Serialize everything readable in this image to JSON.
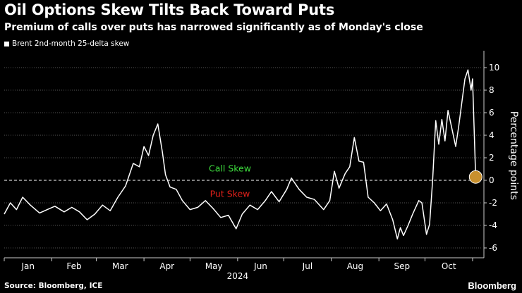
{
  "header": {
    "title": "Oil Options Skew Tilts Back Toward Puts",
    "subtitle": "Premium of calls over puts has narrowed significantly as of Monday's close"
  },
  "footer": {
    "source": "Source: Bloomberg, ICE",
    "brand": "Bloomberg"
  },
  "chart_data": {
    "type": "line",
    "title": "Oil Options Skew Tilts Back Toward Puts",
    "subtitle": "Premium of calls over puts has narrowed significantly as of Monday's close",
    "ylabel": "Percentage points",
    "xlabel": "2024",
    "ylim": [
      -7,
      11.5
    ],
    "yticks": [
      -6,
      -4,
      -2,
      0,
      2,
      4,
      6,
      8,
      10
    ],
    "x_categories": [
      "Jan",
      "Feb",
      "Mar",
      "Apr",
      "May",
      "Jun",
      "Jul",
      "Aug",
      "Sep",
      "Oct"
    ],
    "year_label": "2024",
    "legend_position": "top-left",
    "grid": "horizontal dotted",
    "annotations": [
      {
        "text": "Call Skew",
        "y": 0.6,
        "color": "#3ddc3d"
      },
      {
        "text": "Put Skew",
        "y": -0.9,
        "color": "#e0201a"
      }
    ],
    "reference_line": 0,
    "colors": {
      "series": "#ffffff",
      "marker": "#c8902e",
      "call": "#3ddc3d",
      "put": "#e0201a"
    },
    "series": [
      {
        "name": "Brent 2nd-month 25-delta skew",
        "points": [
          [
            "2024-01-01",
            -3.0
          ],
          [
            "2024-01-05",
            -2.0
          ],
          [
            "2024-01-09",
            -2.6
          ],
          [
            "2024-01-13",
            -1.5
          ],
          [
            "2024-01-18",
            -2.2
          ],
          [
            "2024-01-24",
            -2.9
          ],
          [
            "2024-01-29",
            -2.6
          ],
          [
            "2024-02-03",
            -2.3
          ],
          [
            "2024-02-09",
            -2.8
          ],
          [
            "2024-02-14",
            -2.4
          ],
          [
            "2024-02-19",
            -2.8
          ],
          [
            "2024-02-24",
            -3.5
          ],
          [
            "2024-02-29",
            -3.0
          ],
          [
            "2024-03-05",
            -2.2
          ],
          [
            "2024-03-10",
            -2.7
          ],
          [
            "2024-03-15",
            -1.5
          ],
          [
            "2024-03-20",
            -0.5
          ],
          [
            "2024-03-25",
            1.5
          ],
          [
            "2024-03-29",
            1.2
          ],
          [
            "2024-04-01",
            3.0
          ],
          [
            "2024-04-04",
            2.2
          ],
          [
            "2024-04-07",
            4.0
          ],
          [
            "2024-04-10",
            5.0
          ],
          [
            "2024-04-13",
            2.5
          ],
          [
            "2024-04-15",
            0.5
          ],
          [
            "2024-04-18",
            -0.6
          ],
          [
            "2024-04-22",
            -0.8
          ],
          [
            "2024-04-26",
            -1.8
          ],
          [
            "2024-05-01",
            -2.6
          ],
          [
            "2024-05-06",
            -2.4
          ],
          [
            "2024-05-11",
            -1.8
          ],
          [
            "2024-05-16",
            -2.5
          ],
          [
            "2024-05-21",
            -3.3
          ],
          [
            "2024-05-26",
            -3.1
          ],
          [
            "2024-05-31",
            -4.3
          ],
          [
            "2024-06-04",
            -3.0
          ],
          [
            "2024-06-09",
            -2.2
          ],
          [
            "2024-06-14",
            -2.6
          ],
          [
            "2024-06-19",
            -1.8
          ],
          [
            "2024-06-23",
            -1.0
          ],
          [
            "2024-06-28",
            -1.9
          ],
          [
            "2024-07-03",
            -0.8
          ],
          [
            "2024-07-06",
            0.2
          ],
          [
            "2024-07-11",
            -0.8
          ],
          [
            "2024-07-16",
            -1.5
          ],
          [
            "2024-07-21",
            -1.7
          ],
          [
            "2024-07-27",
            -2.6
          ],
          [
            "2024-07-31",
            -1.8
          ],
          [
            "2024-08-03",
            0.8
          ],
          [
            "2024-08-06",
            -0.7
          ],
          [
            "2024-08-10",
            0.6
          ],
          [
            "2024-08-13",
            1.2
          ],
          [
            "2024-08-16",
            3.8
          ],
          [
            "2024-08-19",
            1.7
          ],
          [
            "2024-08-22",
            1.6
          ],
          [
            "2024-08-25",
            -1.5
          ],
          [
            "2024-08-29",
            -2.0
          ],
          [
            "2024-09-02",
            -2.7
          ],
          [
            "2024-09-06",
            -2.1
          ],
          [
            "2024-09-10",
            -3.5
          ],
          [
            "2024-09-13",
            -5.2
          ],
          [
            "2024-09-15",
            -4.2
          ],
          [
            "2024-09-17",
            -4.9
          ],
          [
            "2024-09-20",
            -4.0
          ],
          [
            "2024-09-23",
            -3.0
          ],
          [
            "2024-09-27",
            -1.8
          ],
          [
            "2024-09-29",
            -2.0
          ],
          [
            "2024-10-02",
            -4.8
          ],
          [
            "2024-10-04",
            -3.9
          ],
          [
            "2024-10-06",
            0.0
          ],
          [
            "2024-10-08",
            5.3
          ],
          [
            "2024-10-10",
            3.2
          ],
          [
            "2024-10-12",
            5.4
          ],
          [
            "2024-10-14",
            3.5
          ],
          [
            "2024-10-16",
            6.2
          ],
          [
            "2024-10-19",
            4.3
          ],
          [
            "2024-10-21",
            3.0
          ],
          [
            "2024-10-23",
            4.8
          ],
          [
            "2024-10-27",
            9.0
          ],
          [
            "2024-10-29",
            9.8
          ],
          [
            "2024-10-31",
            8.0
          ],
          [
            "2024-11-01",
            9.0
          ],
          [
            "2024-11-03",
            0.3
          ]
        ],
        "last_value": 0.3
      }
    ]
  }
}
